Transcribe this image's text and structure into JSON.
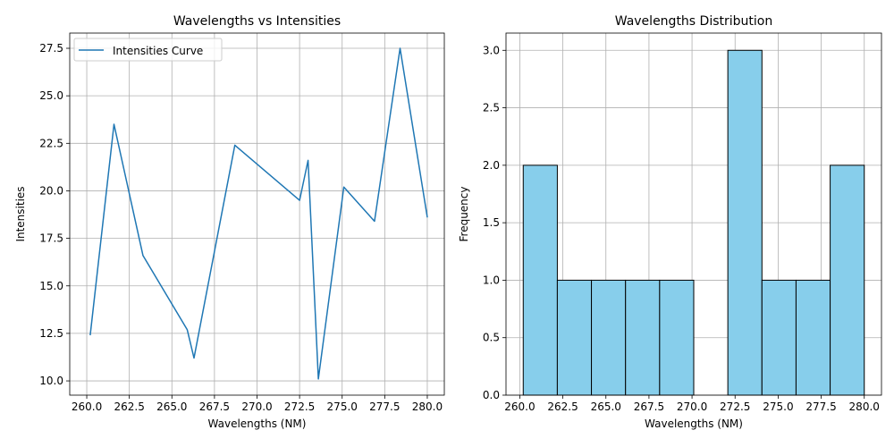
{
  "chart_data": [
    {
      "type": "line",
      "title": "Wavelengths vs Intensities",
      "xlabel": "Wavelengths (NM)",
      "ylabel": "Intensities",
      "xlim": [
        259.0,
        281.0
      ],
      "ylim": [
        9.25,
        28.3
      ],
      "xticks": [
        "260.0",
        "262.5",
        "265.0",
        "267.5",
        "270.0",
        "272.5",
        "275.0",
        "277.5",
        "280.0"
      ],
      "xtick_values": [
        260.0,
        262.5,
        265.0,
        267.5,
        270.0,
        272.5,
        275.0,
        277.5,
        280.0
      ],
      "yticks": [
        "10.0",
        "12.5",
        "15.0",
        "17.5",
        "20.0",
        "22.5",
        "25.0",
        "27.5"
      ],
      "ytick_values": [
        10.0,
        12.5,
        15.0,
        17.5,
        20.0,
        22.5,
        25.0,
        27.5
      ],
      "grid": true,
      "legend_position": "top-left",
      "series": [
        {
          "name": "Intensities Curve",
          "color": "#1f77b4",
          "x": [
            260.2,
            261.6,
            263.3,
            265.9,
            266.3,
            268.7,
            272.5,
            273.0,
            273.6,
            275.1,
            276.9,
            278.4,
            280.0
          ],
          "y": [
            12.4,
            23.5,
            16.6,
            12.7,
            11.2,
            22.4,
            19.5,
            21.6,
            10.1,
            20.2,
            18.4,
            27.5,
            18.6
          ]
        }
      ]
    },
    {
      "type": "bar",
      "title": "Wavelengths Distribution",
      "xlabel": "Wavelengths (NM)",
      "ylabel": "Frequency",
      "xlim": [
        259.2,
        281.0
      ],
      "ylim": [
        0,
        3.15
      ],
      "xticks": [
        "260.0",
        "262.5",
        "265.0",
        "267.5",
        "270.0",
        "272.5",
        "275.0",
        "277.5",
        "280.0"
      ],
      "xtick_values": [
        260.0,
        262.5,
        265.0,
        267.5,
        270.0,
        272.5,
        275.0,
        277.5,
        280.0
      ],
      "yticks": [
        "0.0",
        "0.5",
        "1.0",
        "1.5",
        "2.0",
        "2.5",
        "3.0"
      ],
      "ytick_values": [
        0.0,
        0.5,
        1.0,
        1.5,
        2.0,
        2.5,
        3.0
      ],
      "grid": true,
      "bar_color": "#87ceeb",
      "edge_color": "#000000",
      "bin_edges": [
        260.2,
        262.18,
        264.16,
        266.14,
        268.12,
        270.1,
        272.08,
        274.06,
        276.04,
        278.02,
        280.0
      ],
      "values": [
        2,
        1,
        1,
        1,
        1,
        0,
        3,
        1,
        1,
        2
      ]
    }
  ]
}
